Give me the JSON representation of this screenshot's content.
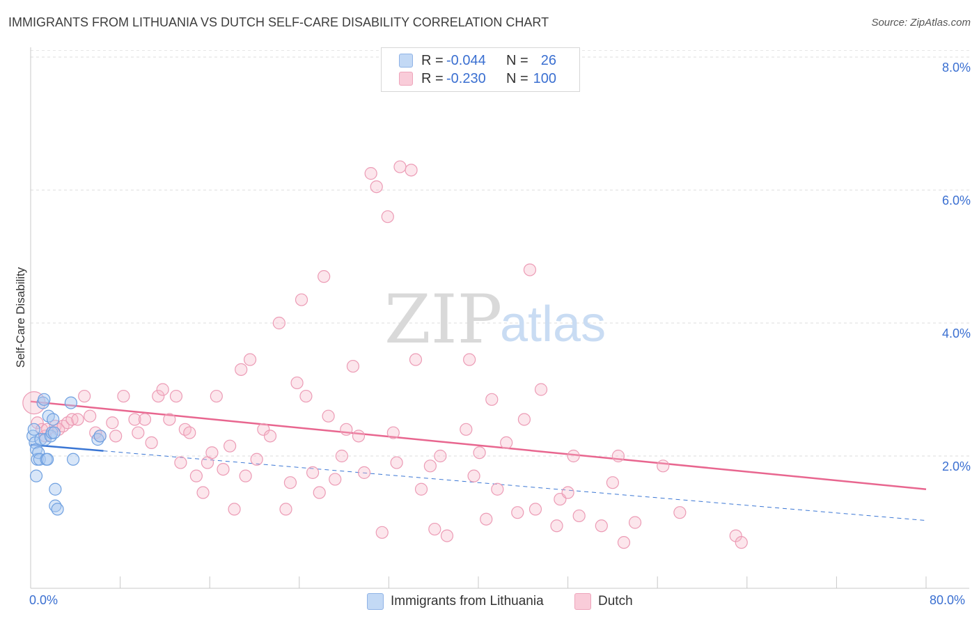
{
  "header": {
    "title": "IMMIGRANTS FROM LITHUANIA VS DUTCH SELF-CARE DISABILITY CORRELATION CHART",
    "source": "Source: ZipAtlas.com"
  },
  "legend_top": {
    "rows": [
      {
        "r_label": "R =",
        "r_value": "-0.044",
        "n_label": "N =",
        "n_value": "26",
        "color": "#a8c8f0"
      },
      {
        "r_label": "R =",
        "r_value": "-0.230",
        "n_label": "N =",
        "n_value": "100",
        "color": "#f5b8c9"
      }
    ]
  },
  "legend_bottom": {
    "items": [
      {
        "label": "Immigrants from Lithuania",
        "color": "#a8c8f0"
      },
      {
        "label": "Dutch",
        "color": "#f5b8c9"
      }
    ]
  },
  "watermark": {
    "part1": "ZIP",
    "part2": "atlas"
  },
  "chart_data": {
    "type": "scatter",
    "title": "IMMIGRANTS FROM LITHUANIA VS DUTCH SELF-CARE DISABILITY CORRELATION CHART",
    "xlabel": "",
    "ylabel": "Self-Care Disability",
    "xlim": [
      0,
      80
    ],
    "ylim": [
      0,
      8.6
    ],
    "x_tick_labels": [
      "0.0%",
      "80.0%"
    ],
    "y_ticks": [
      2,
      4,
      6,
      8
    ],
    "y_tick_labels": [
      "2.0%",
      "4.0%",
      "6.0%",
      "8.0%"
    ],
    "grid": "horizontal dashed",
    "legend_position": "top-center",
    "colors": {
      "lithuania": "#6fa0e0",
      "dutch": "#ec7a9e",
      "lithuania_line": "#3a76d4",
      "dutch_line": "#e8668f"
    },
    "series": [
      {
        "name": "Immigrants from Lithuania",
        "points": [
          [
            0.2,
            2.3
          ],
          [
            0.3,
            2.4
          ],
          [
            0.4,
            2.2
          ],
          [
            0.5,
            2.1
          ],
          [
            0.5,
            1.7
          ],
          [
            0.6,
            1.95
          ],
          [
            0.7,
            2.05
          ],
          [
            0.8,
            1.95
          ],
          [
            0.9,
            2.25
          ],
          [
            1.1,
            2.8
          ],
          [
            1.2,
            2.85
          ],
          [
            1.3,
            2.25
          ],
          [
            1.4,
            1.95
          ],
          [
            1.5,
            1.95
          ],
          [
            1.6,
            2.6
          ],
          [
            1.8,
            2.3
          ],
          [
            1.9,
            2.35
          ],
          [
            2.0,
            2.55
          ],
          [
            2.1,
            2.35
          ],
          [
            2.2,
            1.5
          ],
          [
            2.2,
            1.25
          ],
          [
            2.4,
            1.2
          ],
          [
            3.6,
            2.8
          ],
          [
            3.8,
            1.95
          ],
          [
            6.0,
            2.25
          ],
          [
            6.2,
            2.3
          ]
        ],
        "trend": {
          "x0": 0,
          "y0": 2.17,
          "x1": 80,
          "y1": 1.03,
          "solid_until_x": 6.5
        }
      },
      {
        "name": "Dutch",
        "points": [
          [
            0.3,
            2.8
          ],
          [
            0.6,
            2.5
          ],
          [
            1.0,
            2.4
          ],
          [
            1.3,
            2.3
          ],
          [
            1.5,
            2.4
          ],
          [
            2.2,
            2.45
          ],
          [
            2.5,
            2.4
          ],
          [
            2.9,
            2.45
          ],
          [
            3.3,
            2.5
          ],
          [
            3.7,
            2.55
          ],
          [
            4.2,
            2.55
          ],
          [
            4.8,
            2.9
          ],
          [
            5.3,
            2.6
          ],
          [
            5.8,
            2.35
          ],
          [
            6.2,
            2.3
          ],
          [
            7.3,
            2.5
          ],
          [
            7.6,
            2.3
          ],
          [
            8.3,
            2.9
          ],
          [
            9.3,
            2.55
          ],
          [
            9.6,
            2.35
          ],
          [
            10.2,
            2.55
          ],
          [
            10.8,
            2.2
          ],
          [
            11.4,
            2.9
          ],
          [
            11.8,
            3.0
          ],
          [
            12.4,
            2.55
          ],
          [
            13.0,
            2.9
          ],
          [
            13.4,
            1.9
          ],
          [
            13.8,
            2.4
          ],
          [
            14.2,
            2.35
          ],
          [
            14.8,
            1.7
          ],
          [
            15.4,
            1.45
          ],
          [
            15.8,
            1.9
          ],
          [
            16.2,
            2.05
          ],
          [
            16.6,
            2.9
          ],
          [
            17.2,
            1.8
          ],
          [
            17.8,
            2.15
          ],
          [
            18.2,
            1.2
          ],
          [
            18.8,
            3.3
          ],
          [
            19.2,
            1.7
          ],
          [
            19.6,
            3.45
          ],
          [
            20.2,
            1.95
          ],
          [
            20.8,
            2.4
          ],
          [
            21.4,
            2.3
          ],
          [
            22.2,
            4.0
          ],
          [
            22.8,
            1.2
          ],
          [
            23.2,
            1.6
          ],
          [
            23.8,
            3.1
          ],
          [
            24.2,
            4.35
          ],
          [
            24.6,
            2.9
          ],
          [
            25.2,
            1.75
          ],
          [
            25.8,
            1.45
          ],
          [
            26.2,
            4.7
          ],
          [
            26.6,
            2.6
          ],
          [
            27.2,
            1.65
          ],
          [
            27.8,
            2.0
          ],
          [
            28.2,
            2.4
          ],
          [
            28.8,
            3.35
          ],
          [
            29.3,
            2.3
          ],
          [
            29.8,
            1.75
          ],
          [
            30.4,
            6.25
          ],
          [
            30.9,
            6.05
          ],
          [
            31.4,
            0.85
          ],
          [
            31.9,
            5.6
          ],
          [
            32.4,
            2.35
          ],
          [
            32.7,
            1.9
          ],
          [
            33.0,
            6.35
          ],
          [
            34.0,
            6.3
          ],
          [
            34.4,
            3.45
          ],
          [
            34.9,
            1.5
          ],
          [
            35.7,
            1.85
          ],
          [
            36.1,
            0.9
          ],
          [
            36.6,
            2.0
          ],
          [
            37.2,
            0.8
          ],
          [
            38.9,
            2.4
          ],
          [
            39.2,
            3.45
          ],
          [
            39.6,
            1.7
          ],
          [
            40.1,
            2.05
          ],
          [
            40.7,
            1.05
          ],
          [
            41.2,
            2.85
          ],
          [
            41.7,
            1.5
          ],
          [
            42.5,
            2.2
          ],
          [
            43.5,
            1.15
          ],
          [
            44.1,
            2.55
          ],
          [
            44.6,
            4.8
          ],
          [
            45.1,
            1.2
          ],
          [
            45.6,
            3.0
          ],
          [
            47.0,
            0.95
          ],
          [
            47.3,
            1.35
          ],
          [
            48.0,
            1.45
          ],
          [
            48.5,
            2.0
          ],
          [
            49.0,
            1.1
          ],
          [
            51.0,
            0.95
          ],
          [
            52.0,
            1.6
          ],
          [
            52.5,
            2.0
          ],
          [
            53.0,
            0.7
          ],
          [
            54.0,
            1.0
          ],
          [
            56.5,
            1.85
          ],
          [
            58.0,
            1.15
          ],
          [
            63.0,
            0.8
          ],
          [
            63.5,
            0.7
          ]
        ],
        "trend": {
          "x0": 0,
          "y0": 2.82,
          "x1": 80,
          "y1": 1.5,
          "solid_until_x": 80
        }
      }
    ]
  }
}
